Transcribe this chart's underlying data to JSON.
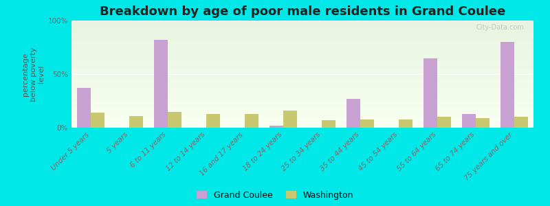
{
  "title": "Breakdown by age of poor male residents in Grand Coulee",
  "ylabel": "percentage\nbelow poverty\nlevel",
  "categories": [
    "Under 5 years",
    "5 years",
    "6 to 11 years",
    "12 to 14 years",
    "16 and 17 years",
    "18 to 24 years",
    "25 to 34 years",
    "35 to 44 years",
    "45 to 54 years",
    "55 to 64 years",
    "65 to 74 years",
    "75 years and over"
  ],
  "grand_coulee": [
    37,
    0,
    82,
    0,
    0,
    2,
    0,
    27,
    0,
    65,
    13,
    80
  ],
  "washington": [
    14,
    11,
    15,
    13,
    13,
    16,
    7,
    8,
    8,
    10,
    9,
    10
  ],
  "grand_coulee_color": "#c8a0d2",
  "washington_color": "#c8c870",
  "bar_width": 0.35,
  "ylim": [
    0,
    100
  ],
  "yticks": [
    0,
    50,
    100
  ],
  "ytick_labels": [
    "0%",
    "50%",
    "100%"
  ],
  "figure_bg_color": "#00e8e8",
  "plot_bg_color_top": "#e8f4e0",
  "plot_bg_color_bottom": "#f8fff0",
  "title_fontsize": 13,
  "axis_label_fontsize": 8,
  "tick_label_fontsize": 7.5,
  "legend_labels": [
    "Grand Coulee",
    "Washington"
  ],
  "watermark": "City-Data.com"
}
